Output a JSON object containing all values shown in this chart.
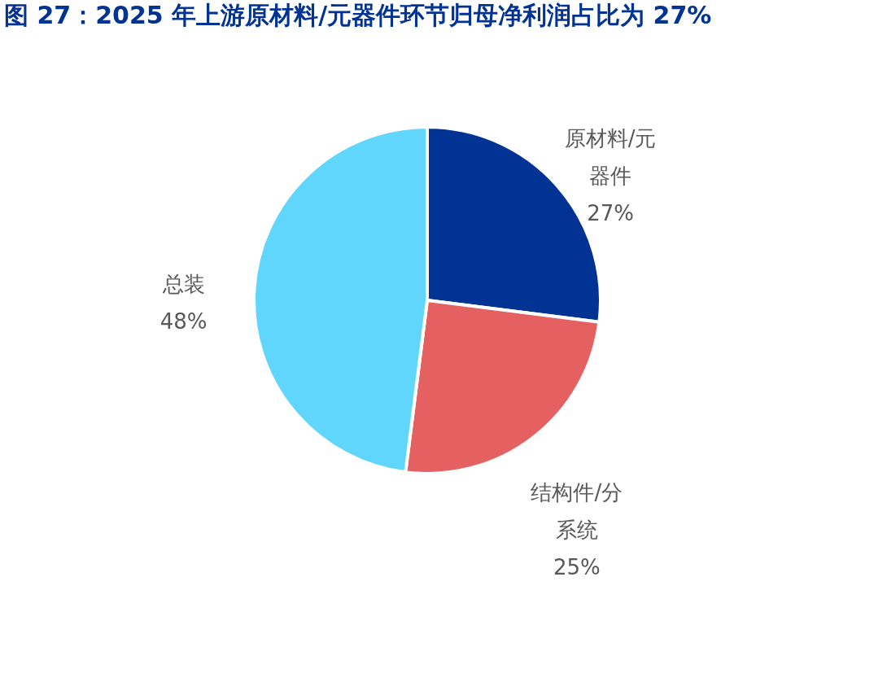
{
  "chart_data": {
    "type": "pie",
    "title": "图 27：2025 年上游原材料/元器件环节归母净利润占比为 27%",
    "categories": [
      "原材料/元器件",
      "结构件/分系统",
      "总装"
    ],
    "values": [
      27,
      25,
      48
    ],
    "colors": [
      "#003393",
      "#e56060",
      "#61d6fd"
    ],
    "value_labels": [
      "27%",
      "25%",
      "48%"
    ],
    "legend": false
  }
}
